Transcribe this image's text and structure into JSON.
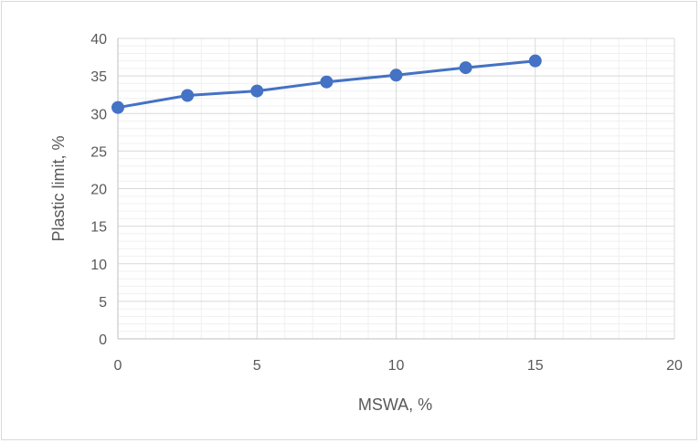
{
  "chart_data": {
    "type": "line",
    "title": "",
    "xlabel": "MSWA, %",
    "ylabel": "Plastic  limit, %",
    "xlim": [
      0,
      20
    ],
    "ylim": [
      0,
      40
    ],
    "x_ticks": [
      "0",
      "5",
      "10",
      "15",
      "20"
    ],
    "y_ticks": [
      "0",
      "5",
      "10",
      "15",
      "20",
      "25",
      "30",
      "35",
      "40"
    ],
    "grid": "major and minor",
    "legend": "none",
    "series": [
      {
        "x": [
          0,
          2.5,
          5,
          7.5,
          10,
          12.5,
          15
        ],
        "values": [
          30.8,
          32.4,
          33.0,
          34.2,
          35.1,
          36.1,
          37.0
        ],
        "color": "#4472c4",
        "marker": "circle"
      }
    ]
  }
}
